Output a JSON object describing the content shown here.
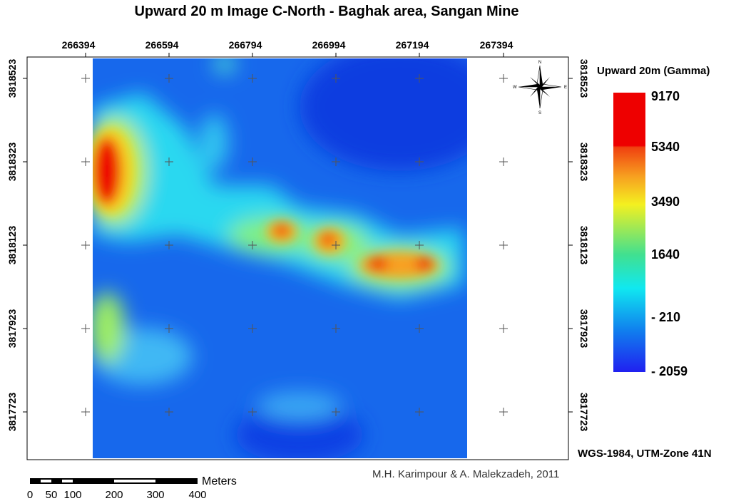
{
  "title": "Upward 20 m Image C-North - Baghak area, Sangan Mine",
  "top_ticks": [
    "266394",
    "266594",
    "266794",
    "266994",
    "267194",
    "267394"
  ],
  "left_ticks": [
    "3818523",
    "3818323",
    "3818123",
    "3817923",
    "3817723"
  ],
  "legend": {
    "title": "Upward 20m (Gamma)",
    "labels": [
      "9170",
      "5340",
      "3490",
      "1640",
      "- 210",
      "- 2059"
    ]
  },
  "north_arrow": {
    "n": "N",
    "s": "S",
    "e": "E",
    "w": "W"
  },
  "scale_bar": {
    "unit": "Meters",
    "labels": [
      "0",
      "50",
      "100",
      "200",
      "300",
      "400"
    ]
  },
  "projection": "WGS-1984, UTM-Zone 41N",
  "credit": "M.H. Karimpour & A. Malekzadeh, 2011"
}
